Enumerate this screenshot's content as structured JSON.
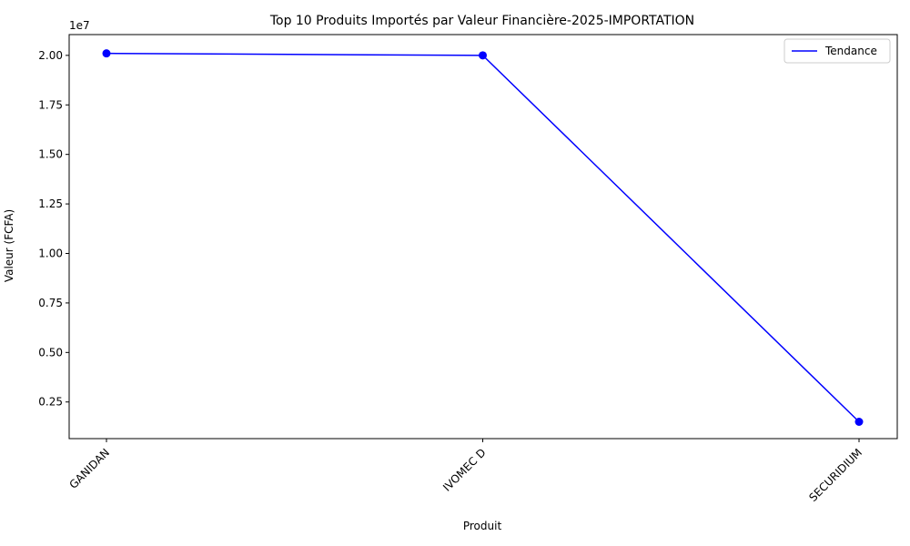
{
  "chart_data": {
    "type": "line",
    "title": "Top 10 Produits Importés par Valeur Financière-2025-IMPORTATION",
    "xlabel": "Produit",
    "ylabel": "Valeur (FCFA)",
    "y_offset_label": "1e7",
    "categories": [
      "GANIDAN",
      "IVOMEC D",
      "SECURIDIUM"
    ],
    "series": [
      {
        "name": "Tendance",
        "values": [
          20100000,
          20000000,
          1500000
        ],
        "color": "#0000ff"
      }
    ],
    "ylim": [
      650000,
      21050000
    ],
    "yticks": [
      {
        "value": 2500000,
        "label": "0.25"
      },
      {
        "value": 5000000,
        "label": "0.50"
      },
      {
        "value": 7500000,
        "label": "0.75"
      },
      {
        "value": 10000000,
        "label": "1.00"
      },
      {
        "value": 12500000,
        "label": "1.25"
      },
      {
        "value": 15000000,
        "label": "1.50"
      },
      {
        "value": 17500000,
        "label": "1.75"
      },
      {
        "value": 20000000,
        "label": "2.00"
      }
    ],
    "grid": false,
    "legend_position": "top-right"
  }
}
